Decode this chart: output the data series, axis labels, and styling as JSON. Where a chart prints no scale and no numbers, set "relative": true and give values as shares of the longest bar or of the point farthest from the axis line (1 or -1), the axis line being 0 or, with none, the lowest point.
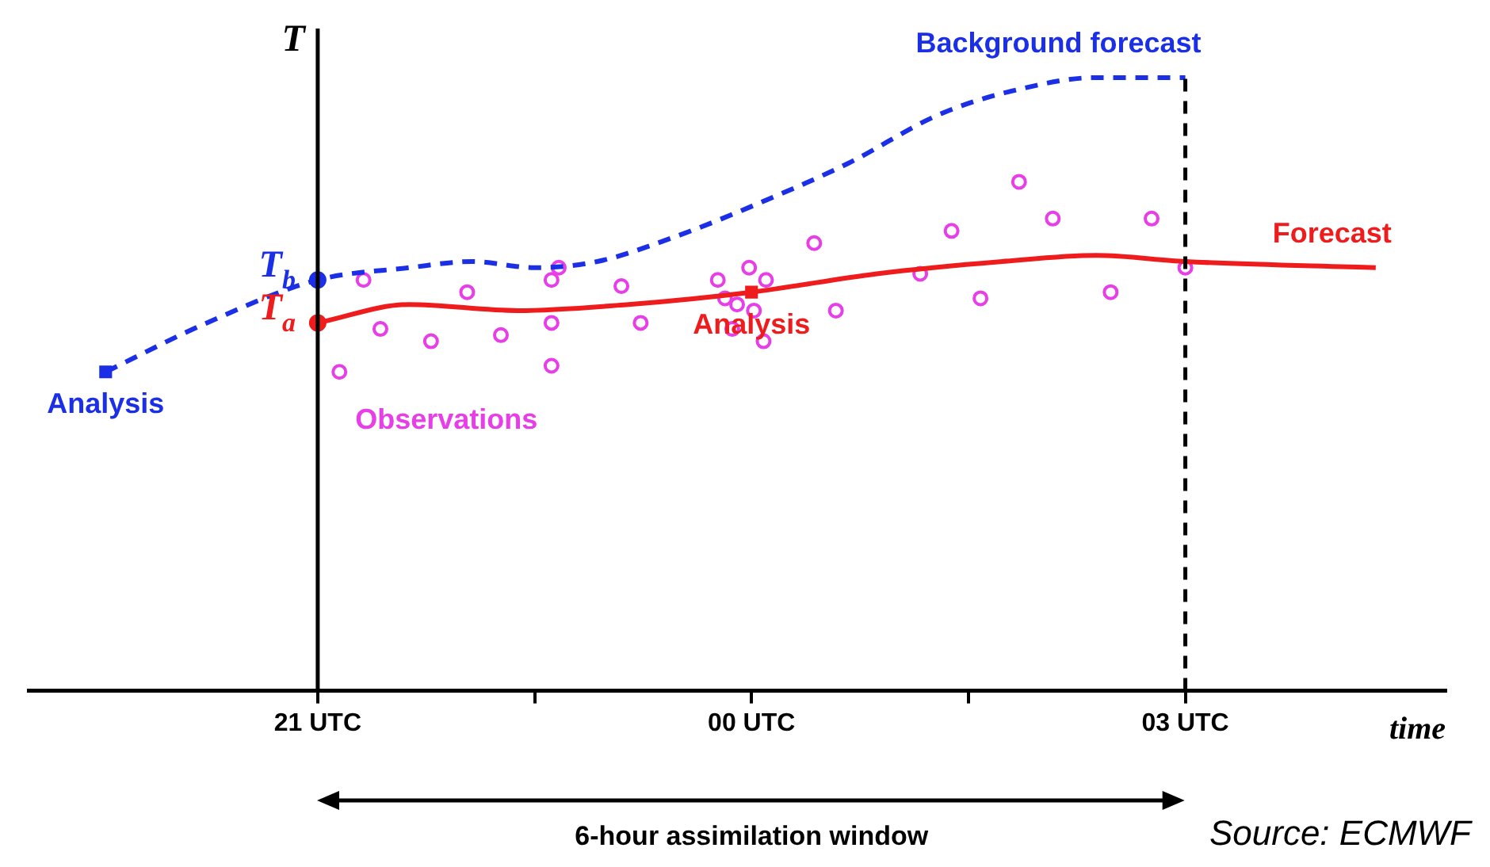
{
  "chart_data": {
    "type": "scatter",
    "xlabel": "time",
    "ylabel": "T",
    "relative": true,
    "grid": false,
    "legend": false,
    "xlim": [
      "2000-01-01T19:00",
      "2000-01-02T04:48"
    ],
    "xticks": [
      {
        "value": "2000-01-01T21:00",
        "label": "21 UTC"
      },
      {
        "value": "2000-01-01T22:30",
        "label": null
      },
      {
        "value": "2000-01-02T00:00",
        "label": "00 UTC"
      },
      {
        "value": "2000-01-02T01:30",
        "label": null
      },
      {
        "value": "2000-01-02T03:00",
        "label": "03 UTC"
      }
    ],
    "series": [
      {
        "name": "Background forecast",
        "type": "line",
        "color": "#1a2fe6",
        "line_style": "dashed",
        "marker": "none",
        "x": [
          "2000-01-01T19:32",
          "2000-01-01T20:14",
          "2000-01-01T21:00",
          "2000-01-01T21:38",
          "2000-01-01T22:04",
          "2000-01-01T22:30",
          "2000-01-01T22:56",
          "2000-01-01T23:28",
          "2000-01-02T00:00",
          "2000-01-02T00:40",
          "2000-01-02T01:18",
          "2000-01-02T01:50",
          "2000-01-02T02:23",
          "2000-01-02T03:00"
        ],
        "values": [
          0.52,
          0.6,
          0.67,
          0.69,
          0.7,
          0.69,
          0.7,
          0.74,
          0.79,
          0.86,
          0.94,
          0.98,
          1.0,
          1.0
        ]
      },
      {
        "name": "Forecast",
        "type": "line",
        "color": "#ee1c1c",
        "line_style": "solid",
        "marker": "none",
        "x": [
          "2000-01-01T21:00",
          "2000-01-01T21:38",
          "2000-01-01T22:23",
          "2000-01-01T23:09",
          "2000-01-02T00:00",
          "2000-01-02T00:52",
          "2000-01-02T01:44",
          "2000-01-02T02:23",
          "2000-01-02T03:00",
          "2000-01-02T04:19"
        ],
        "values": [
          0.6,
          0.63,
          0.62,
          0.63,
          0.65,
          0.68,
          0.7,
          0.71,
          0.7,
          0.69
        ]
      },
      {
        "name": "Observations",
        "type": "scatter",
        "color": "#e83ee8",
        "marker": "circle",
        "x": [
          "2000-01-01T21:09",
          "2000-01-01T21:19",
          "2000-01-01T21:26",
          "2000-01-01T21:47",
          "2000-01-01T22:02",
          "2000-01-01T22:16",
          "2000-01-01T22:37",
          "2000-01-01T22:37",
          "2000-01-01T22:40",
          "2000-01-01T22:37",
          "2000-01-01T23:06",
          "2000-01-01T23:14",
          "2000-01-01T23:46",
          "2000-01-01T23:49",
          "2000-01-01T23:52",
          "2000-01-01T23:54",
          "2000-01-01T23:59",
          "2000-01-02T00:01",
          "2000-01-02T00:05",
          "2000-01-02T00:06",
          "2000-01-02T00:26",
          "2000-01-02T00:35",
          "2000-01-02T01:10",
          "2000-01-02T01:23",
          "2000-01-02T01:35",
          "2000-01-02T01:51",
          "2000-01-02T02:05",
          "2000-01-02T02:29",
          "2000-01-02T02:46",
          "2000-01-02T03:00"
        ],
        "values": [
          0.52,
          0.67,
          0.59,
          0.57,
          0.65,
          0.58,
          0.67,
          0.6,
          0.69,
          0.53,
          0.66,
          0.6,
          0.67,
          0.64,
          0.59,
          0.63,
          0.69,
          0.62,
          0.57,
          0.67,
          0.73,
          0.62,
          0.68,
          0.75,
          0.64,
          0.83,
          0.77,
          0.65,
          0.77,
          0.69
        ]
      },
      {
        "name": "Analysis",
        "type": "scatter",
        "color": "#1a2fe6",
        "marker": "square",
        "x": [
          "2000-01-01T19:32"
        ],
        "values": [
          0.52
        ]
      },
      {
        "name": "Analysis",
        "type": "scatter",
        "color": "#ee1c1c",
        "marker": "square",
        "x": [
          "2000-01-02T00:00"
        ],
        "values": [
          0.65
        ]
      },
      {
        "type": "scatter",
        "color": "#1a2fe6",
        "marker": "circle",
        "x": [
          "2000-01-01T21:00"
        ],
        "values": [
          0.67
        ]
      },
      {
        "type": "scatter",
        "color": "#ee1c1c",
        "marker": "circle",
        "x": [
          "2000-01-01T21:00"
        ],
        "values": [
          0.6
        ]
      }
    ],
    "ref_lines": [
      {
        "axis": "x",
        "value": "2000-01-01T21:00",
        "color": "#000000",
        "line_style": "solid"
      },
      {
        "axis": "x",
        "value": "2000-01-02T03:00",
        "color": "#000000",
        "line_style": "dashed"
      }
    ],
    "annotations": [
      "6-hour assimilation window",
      "Source: ECMWF",
      {
        "text": "T$_{b}$",
        "x": "2000-01-01T21:00",
        "y": 0.67
      },
      {
        "text": "T$_{a}$",
        "x": "2000-01-01T21:00",
        "y": 0.6
      }
    ]
  }
}
